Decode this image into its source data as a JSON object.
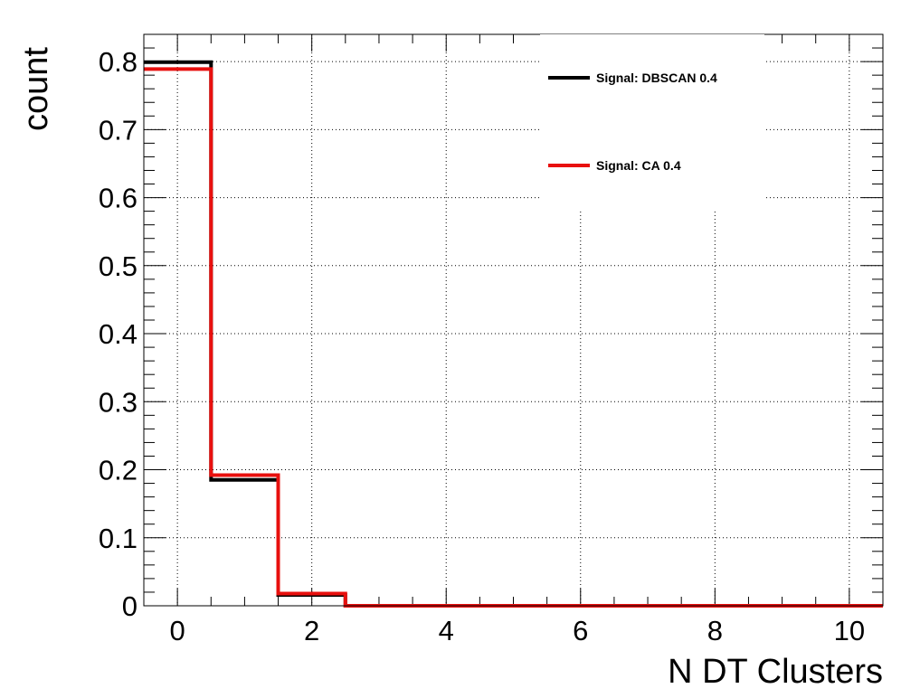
{
  "chart_data": {
    "type": "line",
    "title": "",
    "xlabel": "N DT Clusters",
    "ylabel": "count",
    "xlim": [
      -0.5,
      10.5
    ],
    "ylim": [
      0,
      0.84
    ],
    "grid": true,
    "legend_position": "top-right",
    "x_ticks": [
      "0",
      "2",
      "4",
      "6",
      "8",
      "10"
    ],
    "y_ticks": [
      "0",
      "0.1",
      "0.2",
      "0.3",
      "0.4",
      "0.5",
      "0.6",
      "0.7",
      "0.8"
    ],
    "bin_edges": [
      -0.5,
      0.5,
      1.5,
      2.5,
      3.5,
      4.5,
      5.5,
      6.5,
      7.5,
      8.5,
      9.5,
      10.5
    ],
    "series": [
      {
        "name": "Signal: DBSCAN 0.4",
        "color": "#000000",
        "values": [
          0.799,
          0.185,
          0.016,
          0,
          0,
          0,
          0,
          0,
          0,
          0,
          0
        ]
      },
      {
        "name": "Signal: CA 0.4",
        "color": "#e8100e",
        "values": [
          0.789,
          0.192,
          0.018,
          0,
          0,
          0,
          0,
          0,
          0,
          0,
          0
        ]
      }
    ]
  }
}
